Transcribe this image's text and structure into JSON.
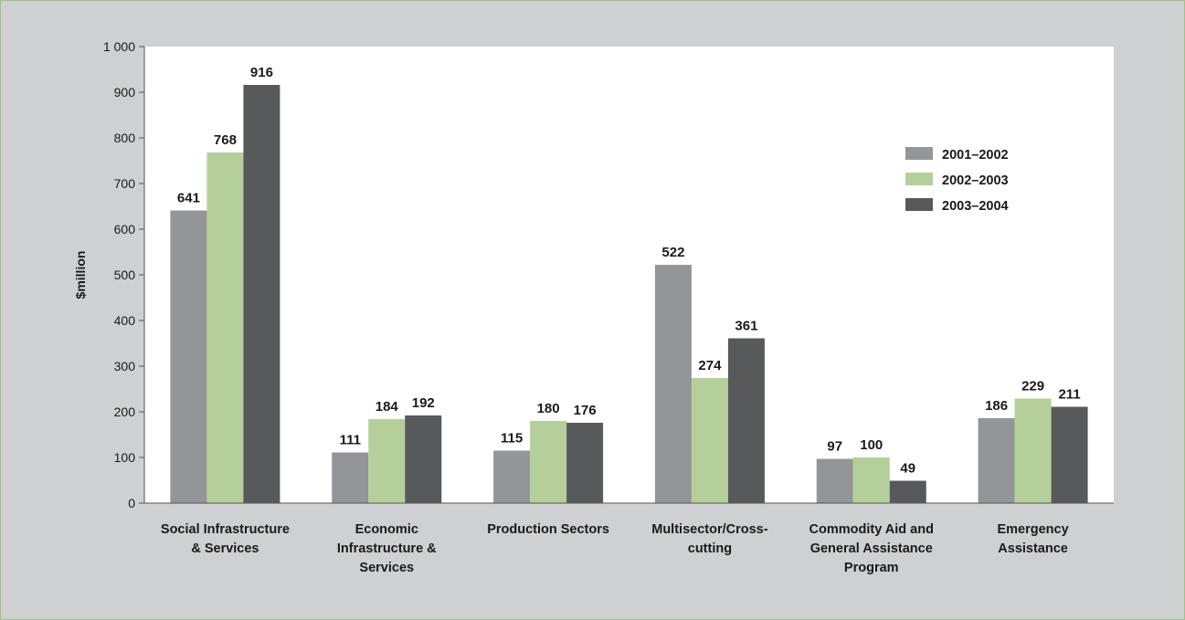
{
  "colors": {
    "background": "#cfd0d1",
    "frame_border": "#9fc47f",
    "plot_area": "#ffffff",
    "axis": "#555555"
  },
  "chart_data": {
    "type": "bar",
    "title": "",
    "xlabel": "",
    "ylabel": "$million",
    "ylim": [
      0,
      1000
    ],
    "yticks": [
      0,
      100,
      200,
      300,
      400,
      500,
      600,
      700,
      800,
      900,
      1000
    ],
    "ytick_labels": [
      "0",
      "100",
      "200",
      "300",
      "400",
      "500",
      "600",
      "700",
      "800",
      "900",
      "1 000"
    ],
    "grid": false,
    "legend_position": "top-right",
    "categories": [
      [
        "Social Infrastructure",
        "& Services"
      ],
      [
        "Economic",
        "Infrastructure &",
        "Services"
      ],
      [
        "Production Sectors"
      ],
      [
        "Multisector/Cross-",
        "cutting"
      ],
      [
        "Commodity Aid and",
        "General Assistance",
        "Program"
      ],
      [
        "Emergency",
        "Assistance"
      ]
    ],
    "series": [
      {
        "name": "2001–2002",
        "color": "#939598",
        "values": [
          641,
          111,
          115,
          522,
          97,
          186
        ]
      },
      {
        "name": "2002–2003",
        "color": "#b5cf9a",
        "values": [
          768,
          184,
          180,
          274,
          100,
          229
        ]
      },
      {
        "name": "2003–2004",
        "color": "#58595b",
        "values": [
          916,
          192,
          176,
          361,
          49,
          211
        ]
      }
    ]
  }
}
